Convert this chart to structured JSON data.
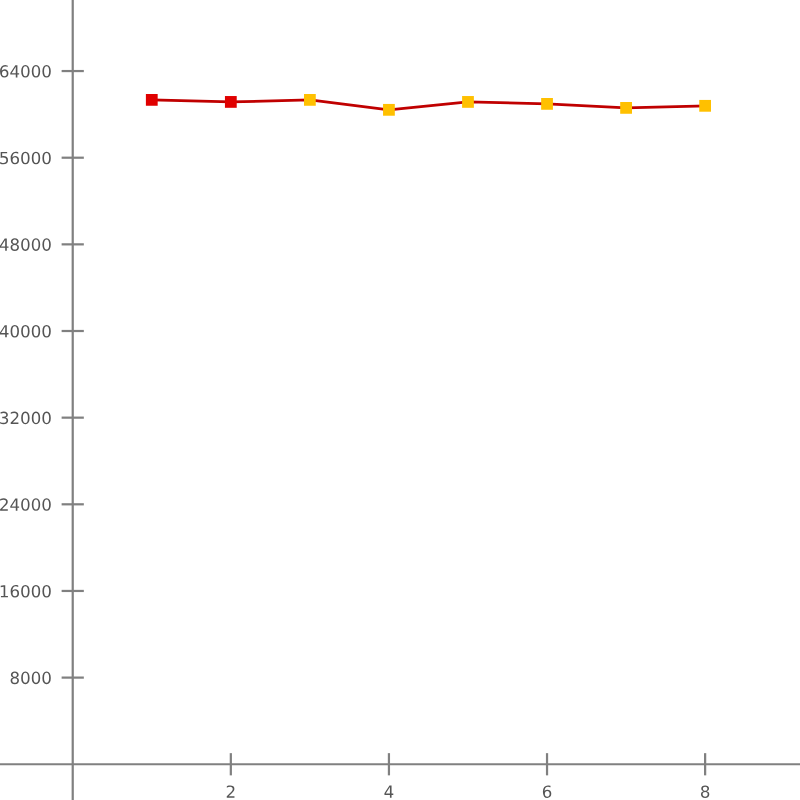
{
  "chart_data": {
    "type": "line",
    "x": [
      1,
      2,
      3,
      4,
      5,
      6,
      7,
      8
    ],
    "series": [
      {
        "color": "#c00000",
        "colors": [
          "#e00000",
          "#e00000",
          "#ffc000",
          "#ffc000",
          "#ffc000",
          "#ffc000",
          "#ffc000",
          "#ffc000"
        ],
        "values": [
          61340,
          61150,
          61340,
          60420,
          61150,
          60970,
          60600,
          60790
        ]
      }
    ],
    "xlim": [
      -0.92,
      9.2
    ],
    "ylim": [
      -3300,
      70560
    ],
    "xticks": [
      2,
      4,
      6,
      8
    ],
    "yticks": [
      8000,
      16000,
      24000,
      32000,
      40000,
      48000,
      56000,
      64000
    ],
    "grid": false,
    "marker": "square",
    "line_style": "solid"
  }
}
